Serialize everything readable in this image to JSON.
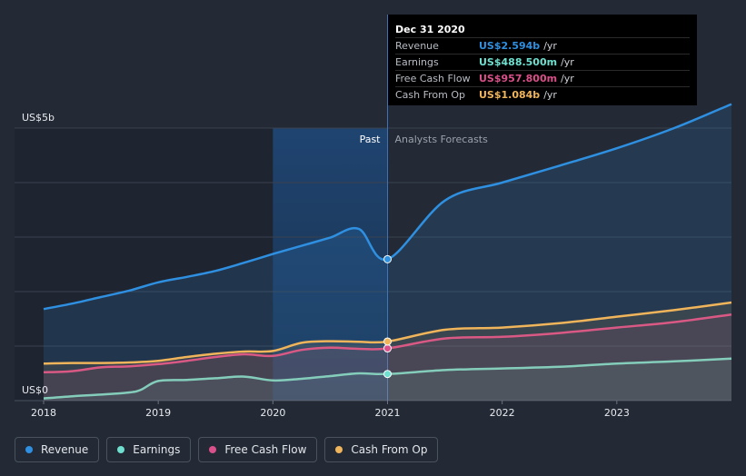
{
  "tooltip": {
    "date": "Dec 31 2020",
    "rows": [
      {
        "label": "Revenue",
        "value": "US$2.594b",
        "unit": "/yr",
        "color": "#2f8fe0"
      },
      {
        "label": "Earnings",
        "value": "US$488.500m",
        "unit": "/yr",
        "color": "#6fe0cf"
      },
      {
        "label": "Free Cash Flow",
        "value": "US$957.800m",
        "unit": "/yr",
        "color": "#d9508a"
      },
      {
        "label": "Cash From Op",
        "value": "US$1.084b",
        "unit": "/yr",
        "color": "#f0b45a"
      }
    ]
  },
  "chart_data": {
    "type": "area",
    "ylabel_top": "US$5b",
    "ylabel_bottom": "US$0",
    "ylim": [
      0,
      5
    ],
    "xlim": [
      2018,
      2024
    ],
    "x_ticks": [
      "2018",
      "2019",
      "2020",
      "2021",
      "2022",
      "2023"
    ],
    "past_label": "Past",
    "forecast_label": "Analysts Forecasts",
    "divider_x": 2021.0,
    "highlight_start": 2020.0,
    "series": [
      {
        "name": "Revenue",
        "color": "#2f8fe0",
        "points": [
          [
            2018.0,
            1.68
          ],
          [
            2018.25,
            1.78
          ],
          [
            2018.5,
            1.9
          ],
          [
            2018.75,
            2.02
          ],
          [
            2019.0,
            2.17
          ],
          [
            2019.25,
            2.27
          ],
          [
            2019.5,
            2.38
          ],
          [
            2019.75,
            2.53
          ],
          [
            2020.0,
            2.69
          ],
          [
            2020.25,
            2.84
          ],
          [
            2020.5,
            2.99
          ],
          [
            2020.75,
            3.15
          ],
          [
            2021.0,
            2.594
          ],
          [
            2021.5,
            3.67
          ],
          [
            2022.0,
            4.0
          ],
          [
            2022.5,
            4.31
          ],
          [
            2023.0,
            4.63
          ],
          [
            2023.5,
            5.0
          ],
          [
            2024.0,
            5.44
          ]
        ]
      },
      {
        "name": "Earnings",
        "color": "#6fe0cf",
        "points": [
          [
            2018.0,
            0.04
          ],
          [
            2018.25,
            0.08
          ],
          [
            2018.5,
            0.11
          ],
          [
            2018.75,
            0.15
          ],
          [
            2018.85,
            0.2
          ],
          [
            2019.0,
            0.36
          ],
          [
            2019.25,
            0.38
          ],
          [
            2019.5,
            0.41
          ],
          [
            2019.75,
            0.44
          ],
          [
            2020.0,
            0.37
          ],
          [
            2020.25,
            0.4
          ],
          [
            2020.5,
            0.45
          ],
          [
            2020.75,
            0.5
          ],
          [
            2021.0,
            0.4885
          ],
          [
            2021.5,
            0.56
          ],
          [
            2022.0,
            0.59
          ],
          [
            2022.5,
            0.62
          ],
          [
            2023.0,
            0.68
          ],
          [
            2023.5,
            0.72
          ],
          [
            2024.0,
            0.77
          ]
        ]
      },
      {
        "name": "Free Cash Flow",
        "color": "#d9508a",
        "points": [
          [
            2018.0,
            0.52
          ],
          [
            2018.25,
            0.54
          ],
          [
            2018.5,
            0.61
          ],
          [
            2018.75,
            0.63
          ],
          [
            2019.0,
            0.67
          ],
          [
            2019.25,
            0.73
          ],
          [
            2019.5,
            0.8
          ],
          [
            2019.75,
            0.85
          ],
          [
            2020.0,
            0.82
          ],
          [
            2020.25,
            0.93
          ],
          [
            2020.5,
            0.97
          ],
          [
            2020.75,
            0.95
          ],
          [
            2021.0,
            0.9578
          ],
          [
            2021.5,
            1.14
          ],
          [
            2022.0,
            1.17
          ],
          [
            2022.5,
            1.24
          ],
          [
            2023.0,
            1.34
          ],
          [
            2023.5,
            1.44
          ],
          [
            2024.0,
            1.58
          ]
        ]
      },
      {
        "name": "Cash From Op",
        "color": "#f0b45a",
        "points": [
          [
            2018.0,
            0.68
          ],
          [
            2018.25,
            0.69
          ],
          [
            2018.5,
            0.69
          ],
          [
            2018.75,
            0.7
          ],
          [
            2019.0,
            0.73
          ],
          [
            2019.25,
            0.8
          ],
          [
            2019.5,
            0.86
          ],
          [
            2019.75,
            0.9
          ],
          [
            2020.0,
            0.91
          ],
          [
            2020.25,
            1.06
          ],
          [
            2020.5,
            1.09
          ],
          [
            2020.75,
            1.08
          ],
          [
            2021.0,
            1.084
          ],
          [
            2021.5,
            1.3
          ],
          [
            2022.0,
            1.34
          ],
          [
            2022.5,
            1.42
          ],
          [
            2023.0,
            1.54
          ],
          [
            2023.5,
            1.66
          ],
          [
            2024.0,
            1.8
          ]
        ]
      }
    ]
  },
  "legend": [
    {
      "label": "Revenue",
      "color": "#2f8fe0"
    },
    {
      "label": "Earnings",
      "color": "#6fe0cf"
    },
    {
      "label": "Free Cash Flow",
      "color": "#d9508a"
    },
    {
      "label": "Cash From Op",
      "color": "#f0b45a"
    }
  ]
}
